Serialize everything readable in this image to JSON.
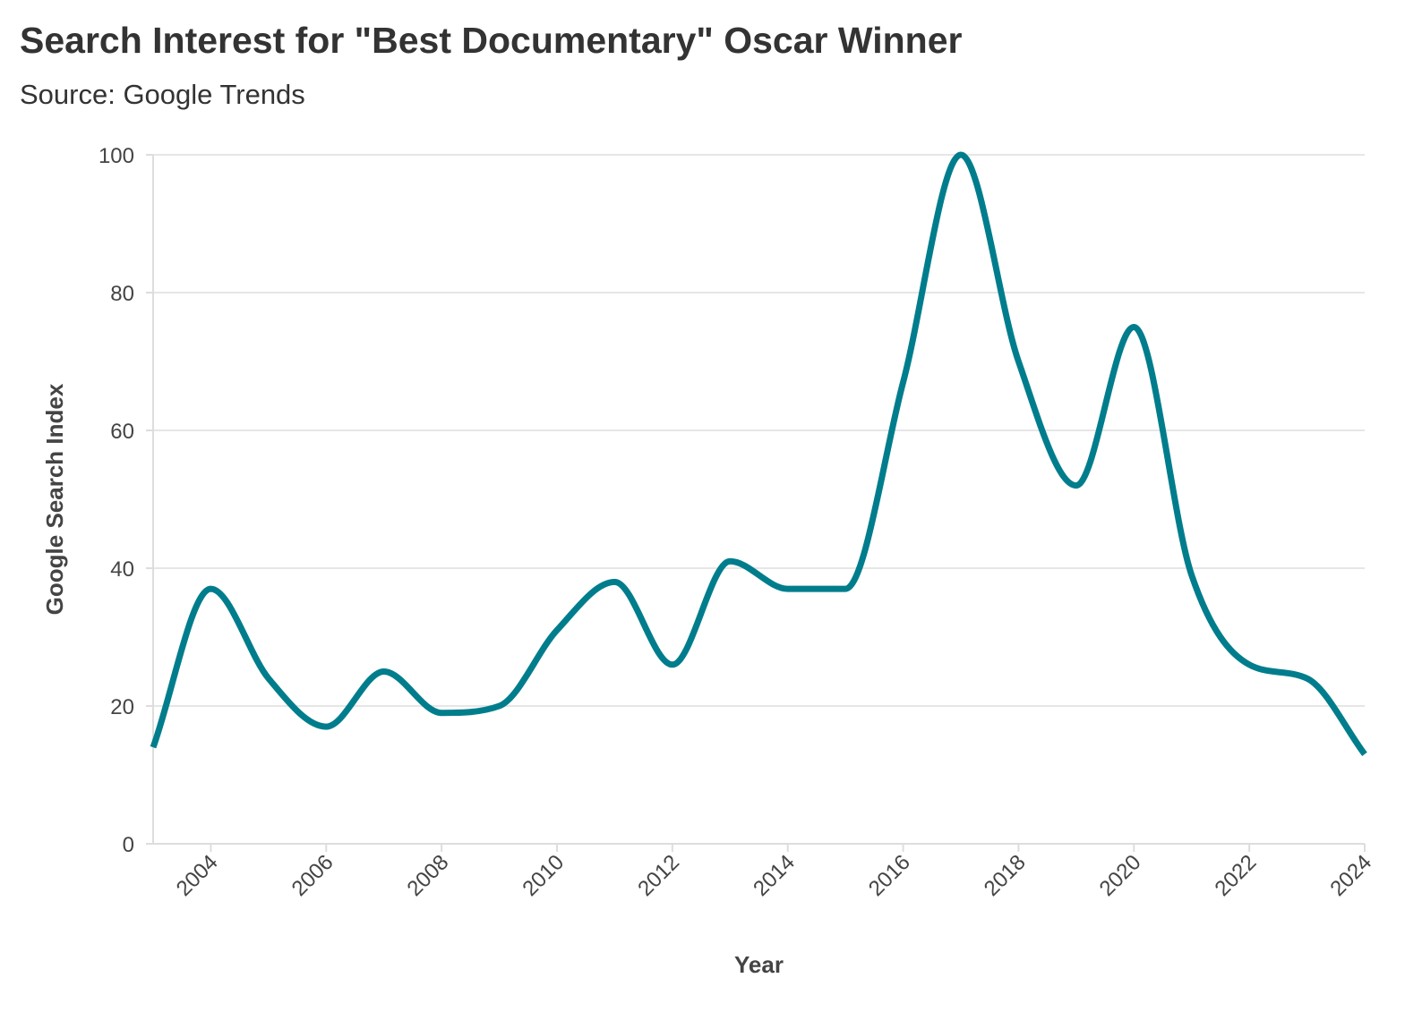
{
  "chart_data": {
    "type": "line",
    "title": "Search Interest for \"Best Documentary\" Oscar Winner",
    "subtitle": "Source: Google Trends",
    "xlabel": "Year",
    "ylabel": "Google Search Index",
    "xlim": [
      2003,
      2024
    ],
    "ylim": [
      0,
      100
    ],
    "x_ticks": [
      "2004",
      "2006",
      "2008",
      "2010",
      "2012",
      "2014",
      "2016",
      "2018",
      "2020",
      "2022",
      "2024"
    ],
    "y_ticks": [
      "0",
      "20",
      "40",
      "60",
      "80",
      "100"
    ],
    "grid": true,
    "series": [
      {
        "color": "#007d8c",
        "x": [
          2003,
          2004,
          2005,
          2006,
          2007,
          2008,
          2009,
          2010,
          2011,
          2012,
          2013,
          2014,
          2015,
          2016,
          2017,
          2018,
          2019,
          2020,
          2021,
          2022,
          2023,
          2024
        ],
        "y": [
          14,
          37,
          24,
          17,
          25,
          19,
          20,
          31,
          38,
          26,
          41,
          37,
          37,
          67,
          100,
          70,
          52,
          75,
          39,
          26,
          24,
          13
        ]
      }
    ]
  }
}
